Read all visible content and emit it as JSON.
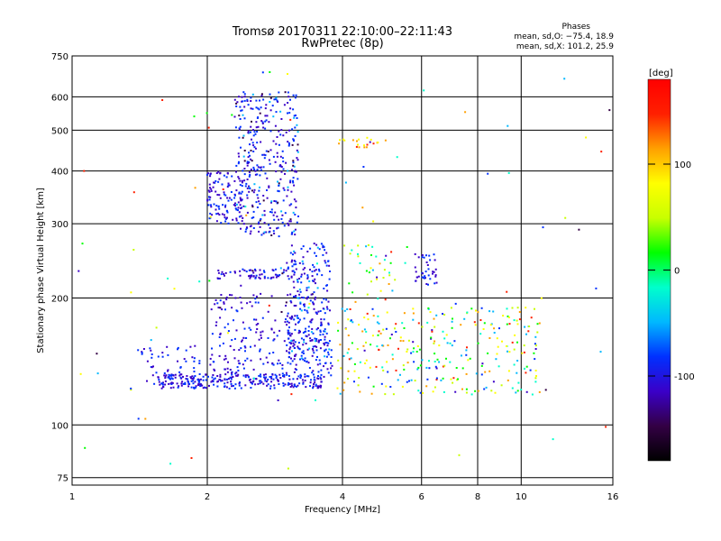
{
  "chart_data": {
    "type": "scatter",
    "title": "Tromsø 20170311 22:10:00–22:11:43",
    "subtitle": "RwPretec (8p)",
    "xlabel": "Frequency [MHz]",
    "ylabel": "Stationary phase Virtual Height [km]",
    "x_scale": "log",
    "y_scale": "log",
    "xlim": [
      1,
      16
    ],
    "ylim": [
      72,
      750
    ],
    "x_ticks": [
      1,
      2,
      4,
      6,
      8,
      10,
      16
    ],
    "y_ticks": [
      75,
      100,
      200,
      300,
      400,
      500,
      600,
      750
    ],
    "grid": true,
    "phase_stats": {
      "heading": "Phases",
      "o_line": "mean, sd,O: −75.4, 18.9",
      "x_line": "mean, sd,X: 101.2, 25.9"
    },
    "colorbar": {
      "label": "[deg]",
      "range": [
        -180,
        180
      ],
      "ticks": [
        100,
        0,
        -100
      ],
      "palette": [
        "#000000",
        "#330044",
        "#3a00c8",
        "#0030ff",
        "#00b8ff",
        "#00ffcc",
        "#00ff00",
        "#c8ff00",
        "#ffff00",
        "#ffa000",
        "#ff2000",
        "#ff0000"
      ]
    },
    "clusters": [
      {
        "name": "",
        "x_range": [
          1.55,
          3.6
        ],
        "y_range": [
          122,
          132
        ],
        "n": 260,
        "phase_range": [
          -125,
          -70
        ]
      },
      {
        "name": "",
        "x_range": [
          2.0,
          3.8
        ],
        "y_range": [
          130,
          180
        ],
        "n": 220,
        "phase_range": [
          -130,
          -70
        ]
      },
      {
        "name": "",
        "x_range": [
          3.0,
          3.75
        ],
        "y_range": [
          140,
          270
        ],
        "n": 220,
        "phase_range": [
          -120,
          -60
        ]
      },
      {
        "name": "",
        "x_range": [
          2.0,
          2.4
        ],
        "y_range": [
          300,
          400
        ],
        "n": 100,
        "phase_range": [
          -130,
          -70
        ]
      },
      {
        "name": "",
        "x_range": [
          2.3,
          3.2
        ],
        "y_range": [
          280,
          620
        ],
        "n": 380,
        "phase_range": [
          -135,
          -60
        ]
      },
      {
        "name": "",
        "x_range": [
          2.1,
          3.3
        ],
        "y_range": [
          222,
          235
        ],
        "n": 70,
        "phase_range": [
          -135,
          -80
        ]
      },
      {
        "name": "",
        "x_range": [
          2.0,
          3.5
        ],
        "y_range": [
          185,
          205
        ],
        "n": 50,
        "phase_range": [
          -135,
          -80
        ]
      },
      {
        "name": "",
        "x_range": [
          1.4,
          2.0
        ],
        "y_range": [
          125,
          155
        ],
        "n": 50,
        "phase_range": [
          -125,
          -70
        ]
      },
      {
        "name": "",
        "x_range": [
          4.0,
          5.6
        ],
        "y_range": [
          195,
          270
        ],
        "n": 40,
        "phase_range": [
          -110,
          140
        ]
      },
      {
        "name": "",
        "x_range": [
          3.9,
          11.0
        ],
        "y_range": [
          118,
          190
        ],
        "n": 300,
        "phase_range": [
          -110,
          150
        ]
      },
      {
        "name": "",
        "x_range": [
          5.8,
          6.5
        ],
        "y_range": [
          215,
          255
        ],
        "n": 40,
        "phase_range": [
          -120,
          -80
        ]
      },
      {
        "name": "",
        "x_range": [
          3.9,
          5.0
        ],
        "y_range": [
          455,
          480
        ],
        "n": 20,
        "phase_range": [
          90,
          140
        ]
      },
      {
        "name": "",
        "x_range": [
          1.0,
          16.0
        ],
        "y_range": [
          76,
          700
        ],
        "n": 80,
        "phase_range": [
          -150,
          160
        ]
      }
    ]
  }
}
